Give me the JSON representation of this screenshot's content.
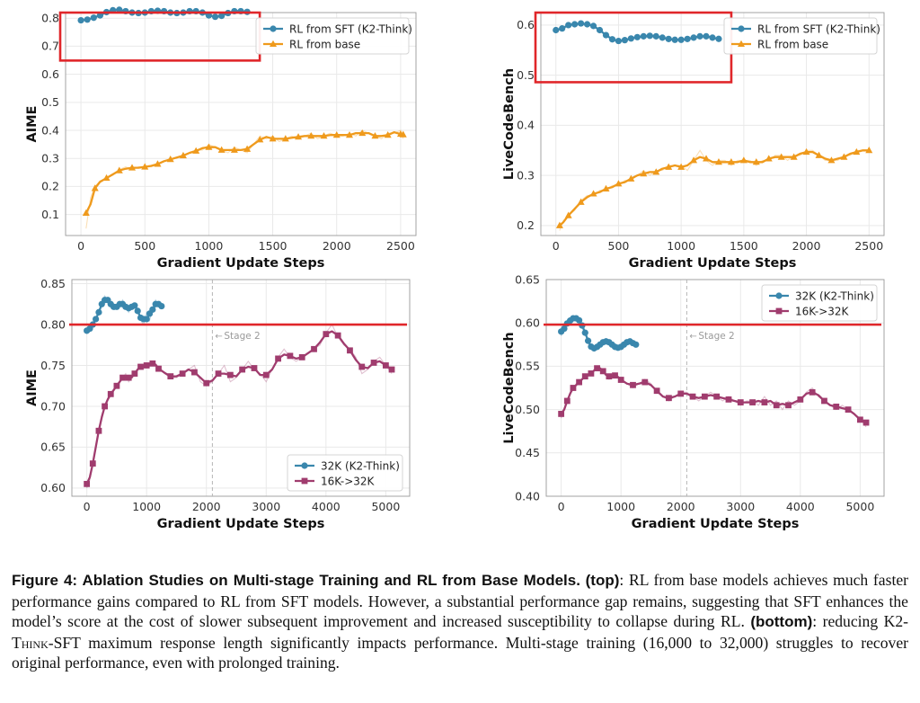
{
  "figure": {
    "colors": {
      "sft": "#3a87ad",
      "base": "#ef9a1c",
      "k2": "#3a87ad",
      "s16": "#a03c6e",
      "red": "#e0262a",
      "grid": "#e9e9e9",
      "spine": "#9a9a9a",
      "stage": "#b5b5b5"
    },
    "stage_label": "Stage 2"
  },
  "chart_data": [
    {
      "type": "line",
      "id": "top-left",
      "xlabel": "Gradient Update Steps",
      "ylabel": "AIME",
      "xlim": [
        -120,
        2620
      ],
      "ylim": [
        0.025,
        0.82
      ],
      "xticks": [
        0,
        500,
        1000,
        1500,
        2000,
        2500
      ],
      "yticks": [
        0.1,
        0.2,
        0.3,
        0.4,
        0.5,
        0.6,
        0.7,
        0.8
      ],
      "legend": {
        "position": "top-right",
        "entries": [
          "RL from SFT (K2-Think)",
          "RL from base"
        ]
      },
      "highlight_box": "around RL from SFT series",
      "series": [
        {
          "name": "RL from SFT (K2-Think)",
          "color_key": "sft",
          "marker": "circle",
          "x": [
            0,
            50,
            100,
            150,
            200,
            250,
            300,
            350,
            400,
            450,
            500,
            550,
            600,
            650,
            700,
            750,
            800,
            850,
            900,
            950,
            1000,
            1050,
            1100,
            1150,
            1200,
            1250,
            1300
          ],
          "y": [
            0.79,
            0.795,
            0.8,
            0.81,
            0.82,
            0.835,
            0.83,
            0.825,
            0.82,
            0.815,
            0.82,
            0.825,
            0.83,
            0.825,
            0.82,
            0.815,
            0.82,
            0.825,
            0.83,
            0.82,
            0.81,
            0.8,
            0.805,
            0.82,
            0.83,
            0.825,
            0.82
          ]
        },
        {
          "name": "RL from base",
          "color_key": "base",
          "marker": "triangle",
          "x": [
            40,
            75,
            110,
            150,
            200,
            250,
            300,
            350,
            400,
            450,
            500,
            550,
            600,
            650,
            700,
            750,
            800,
            850,
            900,
            950,
            1000,
            1050,
            1100,
            1150,
            1200,
            1250,
            1300,
            1350,
            1400,
            1450,
            1500,
            1550,
            1600,
            1650,
            1700,
            1750,
            1800,
            1850,
            1900,
            1950,
            2000,
            2050,
            2100,
            2150,
            2200,
            2250,
            2300,
            2350,
            2400,
            2450,
            2500,
            2520
          ],
          "y": [
            0.05,
            0.16,
            0.2,
            0.22,
            0.23,
            0.24,
            0.26,
            0.27,
            0.26,
            0.27,
            0.27,
            0.27,
            0.28,
            0.29,
            0.3,
            0.3,
            0.31,
            0.32,
            0.33,
            0.33,
            0.35,
            0.34,
            0.33,
            0.32,
            0.34,
            0.33,
            0.32,
            0.35,
            0.38,
            0.37,
            0.38,
            0.36,
            0.37,
            0.38,
            0.37,
            0.38,
            0.39,
            0.37,
            0.38,
            0.39,
            0.38,
            0.38,
            0.39,
            0.38,
            0.4,
            0.39,
            0.38,
            0.37,
            0.39,
            0.39,
            0.4,
            0.37
          ]
        }
      ]
    },
    {
      "type": "line",
      "id": "top-right",
      "xlabel": "Gradient Update Steps",
      "ylabel": "LiveCodeBench",
      "xlim": [
        -120,
        2620
      ],
      "ylim": [
        0.18,
        0.625
      ],
      "xticks": [
        0,
        500,
        1000,
        1500,
        2000,
        2500
      ],
      "yticks": [
        0.2,
        0.3,
        0.4,
        0.5,
        0.6
      ],
      "legend": {
        "position": "top-right",
        "entries": [
          "RL from SFT (K2-Think)",
          "RL from base"
        ]
      },
      "highlight_box": "around RL from SFT series",
      "series": [
        {
          "name": "RL from SFT (K2-Think)",
          "color_key": "sft",
          "marker": "circle",
          "x": [
            0,
            50,
            100,
            150,
            200,
            250,
            300,
            350,
            400,
            450,
            500,
            550,
            600,
            650,
            700,
            750,
            800,
            850,
            900,
            950,
            1000,
            1050,
            1100,
            1150,
            1200,
            1250,
            1300
          ],
          "y": [
            0.585,
            0.595,
            0.6,
            0.605,
            0.6,
            0.605,
            0.6,
            0.59,
            0.58,
            0.57,
            0.565,
            0.57,
            0.575,
            0.575,
            0.578,
            0.58,
            0.578,
            0.575,
            0.572,
            0.57,
            0.57,
            0.572,
            0.575,
            0.578,
            0.58,
            0.575,
            0.57
          ]
        },
        {
          "name": "RL from base",
          "color_key": "base",
          "marker": "triangle",
          "x": [
            30,
            60,
            100,
            150,
            200,
            250,
            300,
            350,
            400,
            450,
            500,
            550,
            600,
            650,
            700,
            750,
            800,
            850,
            900,
            950,
            1000,
            1050,
            1100,
            1150,
            1200,
            1250,
            1300,
            1350,
            1400,
            1450,
            1500,
            1550,
            1600,
            1650,
            1700,
            1750,
            1800,
            1850,
            1900,
            1950,
            2000,
            2050,
            2100,
            2150,
            2200,
            2250,
            2300,
            2350,
            2400,
            2450,
            2500
          ],
          "y": [
            0.19,
            0.21,
            0.22,
            0.23,
            0.25,
            0.26,
            0.26,
            0.27,
            0.27,
            0.28,
            0.28,
            0.29,
            0.29,
            0.3,
            0.31,
            0.3,
            0.31,
            0.31,
            0.32,
            0.32,
            0.32,
            0.31,
            0.33,
            0.35,
            0.33,
            0.32,
            0.33,
            0.33,
            0.32,
            0.33,
            0.33,
            0.33,
            0.32,
            0.33,
            0.33,
            0.34,
            0.34,
            0.33,
            0.34,
            0.34,
            0.35,
            0.35,
            0.34,
            0.33,
            0.33,
            0.33,
            0.34,
            0.34,
            0.35,
            0.35,
            0.35
          ]
        }
      ]
    },
    {
      "type": "line",
      "id": "bottom-left",
      "xlabel": "Gradient Update Steps",
      "ylabel": "AIME",
      "xlim": [
        -250,
        5400
      ],
      "ylim": [
        0.59,
        0.855
      ],
      "xticks": [
        0,
        1000,
        2000,
        3000,
        4000,
        5000
      ],
      "yticks": [
        0.6,
        0.65,
        0.7,
        0.75,
        0.8,
        0.85
      ],
      "legend": {
        "position": "bottom-right",
        "entries": [
          "32K (K2-Think)",
          "16K->32K"
        ]
      },
      "reference_line": 0.8,
      "stage_x": 2100,
      "series": [
        {
          "name": "32K (K2-Think)",
          "color_key": "k2",
          "marker": "circle",
          "x": [
            0,
            50,
            100,
            150,
            200,
            250,
            300,
            350,
            400,
            450,
            500,
            550,
            600,
            650,
            700,
            750,
            800,
            850,
            900,
            950,
            1000,
            1050,
            1100,
            1150,
            1200,
            1250
          ],
          "y": [
            0.79,
            0.795,
            0.8,
            0.805,
            0.815,
            0.825,
            0.835,
            0.83,
            0.825,
            0.82,
            0.82,
            0.825,
            0.83,
            0.82,
            0.815,
            0.825,
            0.825,
            0.82,
            0.805,
            0.8,
            0.815,
            0.805,
            0.82,
            0.83,
            0.825,
            0.82
          ]
        },
        {
          "name": "16K->32K",
          "color_key": "s16",
          "marker": "square",
          "x": [
            0,
            50,
            100,
            150,
            200,
            250,
            300,
            350,
            400,
            450,
            500,
            550,
            600,
            650,
            700,
            750,
            800,
            850,
            900,
            950,
            1000,
            1050,
            1100,
            1150,
            1200,
            1300,
            1400,
            1500,
            1600,
            1700,
            1800,
            1900,
            2000,
            2100,
            2200,
            2300,
            2400,
            2500,
            2600,
            2700,
            2800,
            2900,
            3000,
            3100,
            3200,
            3300,
            3400,
            3500,
            3600,
            3700,
            3800,
            3900,
            4000,
            4100,
            4200,
            4300,
            4400,
            4500,
            4600,
            4700,
            4800,
            4900,
            5000,
            5100
          ],
          "y": [
            0.6,
            0.61,
            0.63,
            0.65,
            0.67,
            0.69,
            0.7,
            0.71,
            0.715,
            0.72,
            0.725,
            0.73,
            0.735,
            0.74,
            0.73,
            0.735,
            0.74,
            0.745,
            0.75,
            0.75,
            0.748,
            0.752,
            0.755,
            0.75,
            0.748,
            0.74,
            0.735,
            0.735,
            0.74,
            0.745,
            0.75,
            0.73,
            0.725,
            0.73,
            0.74,
            0.75,
            0.73,
            0.735,
            0.745,
            0.755,
            0.745,
            0.74,
            0.73,
            0.745,
            0.76,
            0.77,
            0.76,
            0.755,
            0.76,
            0.765,
            0.77,
            0.775,
            0.79,
            0.8,
            0.785,
            0.775,
            0.77,
            0.76,
            0.74,
            0.745,
            0.755,
            0.76,
            0.75,
            0.74
          ]
        }
      ]
    },
    {
      "type": "line",
      "id": "bottom-right",
      "xlabel": "Gradient Update Steps",
      "ylabel": "LiveCodeBench",
      "xlim": [
        -250,
        5400
      ],
      "ylim": [
        0.4,
        0.65
      ],
      "xticks": [
        0,
        1000,
        2000,
        3000,
        4000,
        5000
      ],
      "yticks": [
        0.4,
        0.45,
        0.5,
        0.55,
        0.6,
        0.65
      ],
      "legend": {
        "position": "top-right",
        "entries": [
          "32K (K2-Think)",
          "16K->32K"
        ]
      },
      "reference_line": 0.598,
      "stage_x": 2100,
      "series": [
        {
          "name": "32K (K2-Think)",
          "color_key": "k2",
          "marker": "circle",
          "x": [
            0,
            50,
            100,
            150,
            200,
            250,
            300,
            350,
            400,
            450,
            500,
            550,
            600,
            650,
            700,
            750,
            800,
            850,
            900,
            950,
            1000,
            1050,
            1100,
            1150,
            1200,
            1250
          ],
          "y": [
            0.585,
            0.595,
            0.6,
            0.603,
            0.605,
            0.608,
            0.603,
            0.598,
            0.59,
            0.578,
            0.57,
            0.57,
            0.572,
            0.575,
            0.578,
            0.58,
            0.578,
            0.575,
            0.572,
            0.57,
            0.572,
            0.575,
            0.578,
            0.58,
            0.578,
            0.572
          ]
        },
        {
          "name": "16K->32K",
          "color_key": "s16",
          "marker": "square",
          "x": [
            0,
            50,
            100,
            150,
            200,
            250,
            300,
            350,
            400,
            450,
            500,
            550,
            600,
            650,
            700,
            750,
            800,
            850,
            900,
            950,
            1000,
            1100,
            1200,
            1300,
            1400,
            1500,
            1600,
            1700,
            1800,
            1900,
            2000,
            2100,
            2200,
            2300,
            2400,
            2500,
            2600,
            2700,
            2800,
            2900,
            3000,
            3100,
            3200,
            3300,
            3400,
            3500,
            3600,
            3700,
            3800,
            3900,
            4000,
            4100,
            4200,
            4300,
            4400,
            4500,
            4600,
            4700,
            4800,
            4900,
            5000,
            5100
          ],
          "y": [
            0.49,
            0.5,
            0.51,
            0.52,
            0.525,
            0.53,
            0.53,
            0.535,
            0.54,
            0.54,
            0.54,
            0.545,
            0.55,
            0.548,
            0.545,
            0.54,
            0.535,
            0.54,
            0.54,
            0.538,
            0.535,
            0.53,
            0.525,
            0.53,
            0.535,
            0.53,
            0.52,
            0.515,
            0.51,
            0.515,
            0.52,
            0.52,
            0.515,
            0.51,
            0.515,
            0.52,
            0.515,
            0.51,
            0.515,
            0.51,
            0.505,
            0.51,
            0.51,
            0.505,
            0.515,
            0.505,
            0.51,
            0.5,
            0.51,
            0.505,
            0.51,
            0.52,
            0.525,
            0.515,
            0.51,
            0.505,
            0.5,
            0.505,
            0.5,
            0.495,
            0.49,
            0.48
          ]
        }
      ]
    }
  ],
  "caption": {
    "label": "Figure 4: Ablation Studies on Multi-stage Training and RL from Base Models.",
    "top_tag": "(top)",
    "top_text": ": RL from base models achieves much faster performance gains compared to RL from SFT models. However, a substantial performance gap remains, suggesting that SFT enhances the model’s score at the cost of slower subsequent improvement and increased susceptibility to collapse during RL. ",
    "bottom_tag": "(bottom)",
    "bottom_text_1": ": reducing K2-",
    "bottom_smallcaps": "Think",
    "bottom_text_2": "-SFT maximum response length significantly impacts performance. Multi-stage training (16,000 to 32,000) struggles to recover original performance, even with prolonged training."
  }
}
